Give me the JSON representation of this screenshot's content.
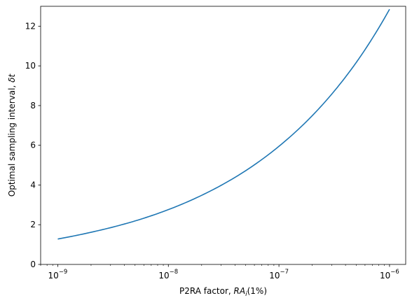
{
  "chart_data": {
    "type": "line",
    "xscale": "log",
    "xlim": [
      7e-10,
      1.4e-06
    ],
    "ylim": [
      0,
      13
    ],
    "xlabel_text": "P2RA factor, ",
    "xlabel_math": "RA",
    "xlabel_sub": "i",
    "xlabel_suffix": "(1%)",
    "ylabel_text": "Optimal sampling interval, ",
    "ylabel_math": "δt",
    "x_ticks": [
      {
        "value": 1e-09,
        "mantissa": "10",
        "exponent": "−9"
      },
      {
        "value": 1e-08,
        "mantissa": "10",
        "exponent": "−8"
      },
      {
        "value": 1e-07,
        "mantissa": "10",
        "exponent": "−7"
      },
      {
        "value": 1e-06,
        "mantissa": "10",
        "exponent": "−6"
      }
    ],
    "y_ticks": [
      {
        "value": 0,
        "label": "0"
      },
      {
        "value": 2,
        "label": "2"
      },
      {
        "value": 4,
        "label": "4"
      },
      {
        "value": 6,
        "label": "6"
      },
      {
        "value": 8,
        "label": "8"
      },
      {
        "value": 10,
        "label": "10"
      },
      {
        "value": 12,
        "label": "12"
      }
    ],
    "grid": false,
    "series": [
      {
        "color": "#1f77b4",
        "x": [
          1e-09,
          2e-09,
          5e-09,
          1e-08,
          2e-08,
          5e-08,
          1e-07,
          2e-07,
          5e-07,
          1e-06
        ],
        "y": [
          1.28,
          1.62,
          2.19,
          2.76,
          3.48,
          4.72,
          5.95,
          7.49,
          10.17,
          12.85
        ]
      }
    ]
  }
}
